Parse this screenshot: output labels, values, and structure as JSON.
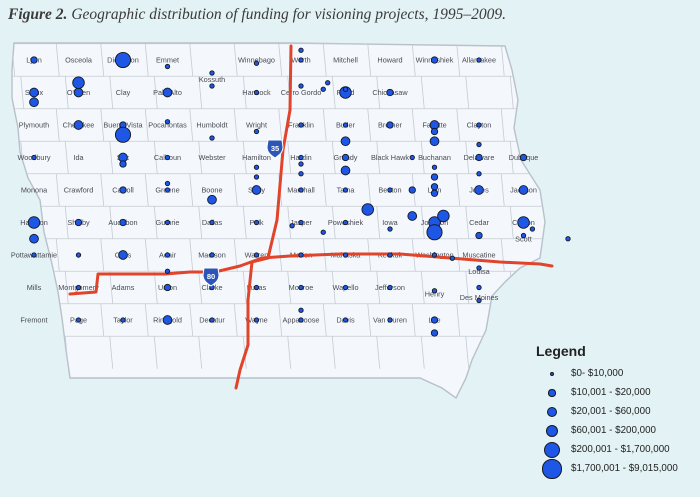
{
  "caption": {
    "figure_label": "Figure 2.",
    "title": "Geographic distribution of funding for visioning projects, 1995–2009."
  },
  "map": {
    "colors": {
      "background": "#e3f2f4",
      "land": "#f4f8fc",
      "county_border": "#c5cad4",
      "highway": "#e0442a",
      "marker": "#1e56e6",
      "shield": "#2d55b8"
    },
    "county_labels": [
      [
        "Lyon",
        0,
        0
      ],
      [
        "Osceola",
        1,
        0
      ],
      [
        "Dickinson",
        2,
        0
      ],
      [
        "Emmet",
        3,
        0
      ],
      [
        "Winnebago",
        5,
        0
      ],
      [
        "Worth",
        6,
        0
      ],
      [
        "Mitchell",
        7,
        0
      ],
      [
        "Howard",
        8,
        0
      ],
      [
        "Winneshiek",
        9,
        0
      ],
      [
        "Allamakee",
        10,
        0
      ],
      [
        "Kossuth",
        4,
        0.6
      ],
      [
        "Sioux",
        0,
        1
      ],
      [
        "O'brien",
        1,
        1
      ],
      [
        "Clay",
        2,
        1
      ],
      [
        "Palo Alto",
        3,
        1
      ],
      [
        "Hancock",
        5,
        1
      ],
      [
        "Cerro Gordo",
        6,
        1
      ],
      [
        "Floyd",
        7,
        1
      ],
      [
        "Chickasaw",
        8,
        1
      ],
      [
        "Fayette",
        9,
        2
      ],
      [
        "Clayton",
        10,
        2
      ],
      [
        "Plymouth",
        0,
        2
      ],
      [
        "Cherokee",
        1,
        2
      ],
      [
        "Buena Vista",
        2,
        2
      ],
      [
        "Pocahontas",
        3,
        2
      ],
      [
        "Humboldt",
        4,
        2
      ],
      [
        "Wright",
        5,
        2
      ],
      [
        "Franklin",
        6,
        2
      ],
      [
        "Butler",
        7,
        2
      ],
      [
        "Bremer",
        8,
        2
      ],
      [
        "Black Hawk",
        8,
        3
      ],
      [
        "Buchanan",
        9,
        3
      ],
      [
        "Delaware",
        10,
        3
      ],
      [
        "Dubuque",
        11,
        3
      ],
      [
        "Woodbury",
        0,
        3
      ],
      [
        "Ida",
        1,
        3
      ],
      [
        "Sac",
        2,
        3
      ],
      [
        "Calhoun",
        3,
        3
      ],
      [
        "Webster",
        4,
        3
      ],
      [
        "Hamilton",
        5,
        3
      ],
      [
        "Hardin",
        6,
        3
      ],
      [
        "Grundy",
        7,
        3
      ],
      [
        "Monona",
        0,
        4
      ],
      [
        "Crawford",
        1,
        4
      ],
      [
        "Carroll",
        2,
        4
      ],
      [
        "Greene",
        3,
        4
      ],
      [
        "Boone",
        4,
        4
      ],
      [
        "Story",
        5,
        4
      ],
      [
        "Marshall",
        6,
        4
      ],
      [
        "Tama",
        7,
        4
      ],
      [
        "Benton",
        8,
        4
      ],
      [
        "Linn",
        9,
        4
      ],
      [
        "Jones",
        10,
        4
      ],
      [
        "Jackson",
        11,
        4
      ],
      [
        "Clinton",
        11,
        5
      ],
      [
        "Harrison",
        0,
        5
      ],
      [
        "Shelby",
        1,
        5
      ],
      [
        "Audubon",
        2,
        5
      ],
      [
        "Guthrie",
        3,
        5
      ],
      [
        "Dallas",
        4,
        5
      ],
      [
        "Polk",
        5,
        5
      ],
      [
        "Jasper",
        6,
        5
      ],
      [
        "Poweshiek",
        7,
        5
      ],
      [
        "Iowa",
        8,
        5
      ],
      [
        "Johnson",
        9,
        5
      ],
      [
        "Cedar",
        10,
        5
      ],
      [
        "Scott",
        11,
        5.5
      ],
      [
        "Muscatine",
        10,
        6
      ],
      [
        "Pottawattamie",
        0,
        6
      ],
      [
        "Cass",
        2,
        6
      ],
      [
        "Adair",
        3,
        6
      ],
      [
        "Madison",
        4,
        6
      ],
      [
        "Warren",
        5,
        6
      ],
      [
        "Marion",
        6,
        6
      ],
      [
        "Mahaska",
        7,
        6
      ],
      [
        "Keokuk",
        8,
        6
      ],
      [
        "Washington",
        9,
        6
      ],
      [
        "Louisa",
        10,
        6.5
      ],
      [
        "Mills",
        0,
        7
      ],
      [
        "Montgomery",
        1,
        7
      ],
      [
        "Adams",
        2,
        7
      ],
      [
        "Union",
        3,
        7
      ],
      [
        "Clarke",
        4,
        7
      ],
      [
        "Lucas",
        5,
        7
      ],
      [
        "Monroe",
        6,
        7
      ],
      [
        "Wapello",
        7,
        7
      ],
      [
        "Jefferson",
        8,
        7
      ],
      [
        "Henry",
        9,
        7.2
      ],
      [
        "Des Moines",
        10,
        7.3
      ],
      [
        "Fremont",
        0,
        8
      ],
      [
        "Page",
        1,
        8
      ],
      [
        "Taylor",
        2,
        8
      ],
      [
        "Ringgold",
        3,
        8
      ],
      [
        "Decatur",
        4,
        8
      ],
      [
        "Wayne",
        5,
        8
      ],
      [
        "Appanoose",
        6,
        8
      ],
      [
        "Davis",
        7,
        8
      ],
      [
        "Van Buren",
        8,
        8
      ],
      [
        "Lee",
        9,
        8
      ]
    ],
    "marker_levels": [
      [
        0,
        0,
        2
      ],
      [
        2,
        0,
        4
      ],
      [
        2,
        0,
        5
      ],
      [
        3,
        0.2,
        1
      ],
      [
        5,
        0.1,
        1
      ],
      [
        6,
        0,
        1
      ],
      [
        6,
        -0.3,
        1
      ],
      [
        9,
        0,
        2
      ],
      [
        10,
        0,
        1
      ],
      [
        0,
        1,
        3
      ],
      [
        1,
        1,
        3
      ],
      [
        0,
        1.3,
        3
      ],
      [
        1,
        0.7,
        4
      ],
      [
        3,
        1,
        3
      ],
      [
        4,
        0.8,
        1
      ],
      [
        4,
        0.4,
        1
      ],
      [
        5,
        1,
        1
      ],
      [
        6,
        0.8,
        1
      ],
      [
        6.5,
        0.9,
        1
      ],
      [
        7,
        1,
        4
      ],
      [
        7,
        0.9,
        1
      ],
      [
        8,
        1,
        2
      ],
      [
        6.6,
        0.7,
        1
      ],
      [
        2,
        2,
        2
      ],
      [
        1,
        2,
        3
      ],
      [
        2,
        2.3,
        5
      ],
      [
        3,
        1.9,
        1
      ],
      [
        4,
        2.4,
        1
      ],
      [
        5,
        2.2,
        1
      ],
      [
        6,
        2,
        1
      ],
      [
        7,
        2,
        1
      ],
      [
        8,
        2,
        2
      ],
      [
        7,
        2.5,
        3
      ],
      [
        9,
        2,
        3
      ],
      [
        9,
        2.5,
        3
      ],
      [
        10,
        2,
        1
      ],
      [
        10,
        2.6,
        1
      ],
      [
        8.5,
        3,
        1
      ],
      [
        11,
        3,
        2
      ],
      [
        9,
        2.2,
        2
      ],
      [
        0,
        3,
        1
      ],
      [
        2,
        3,
        3
      ],
      [
        2,
        3.2,
        2
      ],
      [
        3,
        3,
        1
      ],
      [
        5,
        3.3,
        1
      ],
      [
        6,
        3,
        1
      ],
      [
        6,
        3.2,
        1
      ],
      [
        7,
        3,
        2
      ],
      [
        7,
        3.4,
        3
      ],
      [
        6,
        3.5,
        1
      ],
      [
        10,
        3,
        2
      ],
      [
        10,
        3.5,
        1
      ],
      [
        9,
        3.6,
        2
      ],
      [
        9,
        3.3,
        1
      ],
      [
        2,
        4,
        2
      ],
      [
        3,
        4,
        1
      ],
      [
        3,
        3.8,
        1
      ],
      [
        4,
        4.3,
        3
      ],
      [
        5,
        4,
        3
      ],
      [
        5,
        3.6,
        1
      ],
      [
        6,
        4,
        1
      ],
      [
        7,
        4,
        1
      ],
      [
        8,
        4,
        1
      ],
      [
        8.5,
        4,
        2
      ],
      [
        9,
        3.9,
        2
      ],
      [
        9,
        4.1,
        2
      ],
      [
        10,
        4,
        3
      ],
      [
        11,
        4,
        3
      ],
      [
        7.5,
        4.6,
        4
      ],
      [
        8.5,
        4.8,
        3
      ],
      [
        0,
        5,
        4
      ],
      [
        0,
        5.5,
        3
      ],
      [
        1,
        5,
        2
      ],
      [
        2,
        5,
        2
      ],
      [
        3,
        5,
        1
      ],
      [
        4,
        5,
        1
      ],
      [
        5,
        5,
        1
      ],
      [
        6,
        5,
        1
      ],
      [
        7,
        5,
        1
      ],
      [
        8,
        5.2,
        1
      ],
      [
        9,
        5,
        4
      ],
      [
        9,
        5.3,
        5
      ],
      [
        9.2,
        4.8,
        4
      ],
      [
        10,
        5.4,
        2
      ],
      [
        11,
        5,
        4
      ],
      [
        11,
        5.4,
        1
      ],
      [
        12,
        5.5,
        1
      ],
      [
        11.2,
        5.2,
        1
      ],
      [
        6.5,
        5.3,
        1
      ],
      [
        5.8,
        5.1,
        1
      ],
      [
        0,
        6,
        1
      ],
      [
        1,
        6,
        1
      ],
      [
        2,
        6,
        3
      ],
      [
        3,
        6,
        1
      ],
      [
        4,
        6,
        1
      ],
      [
        5,
        6,
        1
      ],
      [
        6,
        6,
        1
      ],
      [
        7,
        6,
        1
      ],
      [
        8,
        6,
        1
      ],
      [
        9,
        6,
        1
      ],
      [
        9.4,
        6.1,
        1
      ],
      [
        10,
        6.4,
        1
      ],
      [
        1,
        7,
        1
      ],
      [
        3,
        7,
        2
      ],
      [
        3,
        6.5,
        1
      ],
      [
        4,
        7,
        1
      ],
      [
        5,
        7,
        1
      ],
      [
        6,
        7,
        1
      ],
      [
        7,
        7,
        1
      ],
      [
        8,
        7,
        1
      ],
      [
        9,
        7.1,
        1
      ],
      [
        10,
        7,
        1
      ],
      [
        10,
        7.4,
        1
      ],
      [
        1,
        8,
        1
      ],
      [
        2,
        8,
        1
      ],
      [
        3,
        8,
        3
      ],
      [
        4,
        8,
        1
      ],
      [
        5,
        8,
        1
      ],
      [
        6,
        7.7,
        1
      ],
      [
        6,
        8,
        1
      ],
      [
        7,
        8,
        1
      ],
      [
        8,
        8,
        1
      ],
      [
        9,
        8,
        2
      ],
      [
        9,
        8.4,
        2
      ]
    ],
    "highway_labels": {
      "i35": "35",
      "i80": "80"
    }
  },
  "legend": {
    "title": "Legend",
    "items": [
      {
        "label": "$0- $10,000",
        "level": 1
      },
      {
        "label": "$10,001 - $20,000",
        "level": 2
      },
      {
        "label": "$20,001 - $60,000",
        "level": 3
      },
      {
        "label": "$60,001 - $200,000",
        "level": 4
      },
      {
        "label": "$200,001 - $1,700,000",
        "level": 5
      },
      {
        "label": "$1,700,001 - $9,015,000",
        "level": 6
      }
    ]
  }
}
